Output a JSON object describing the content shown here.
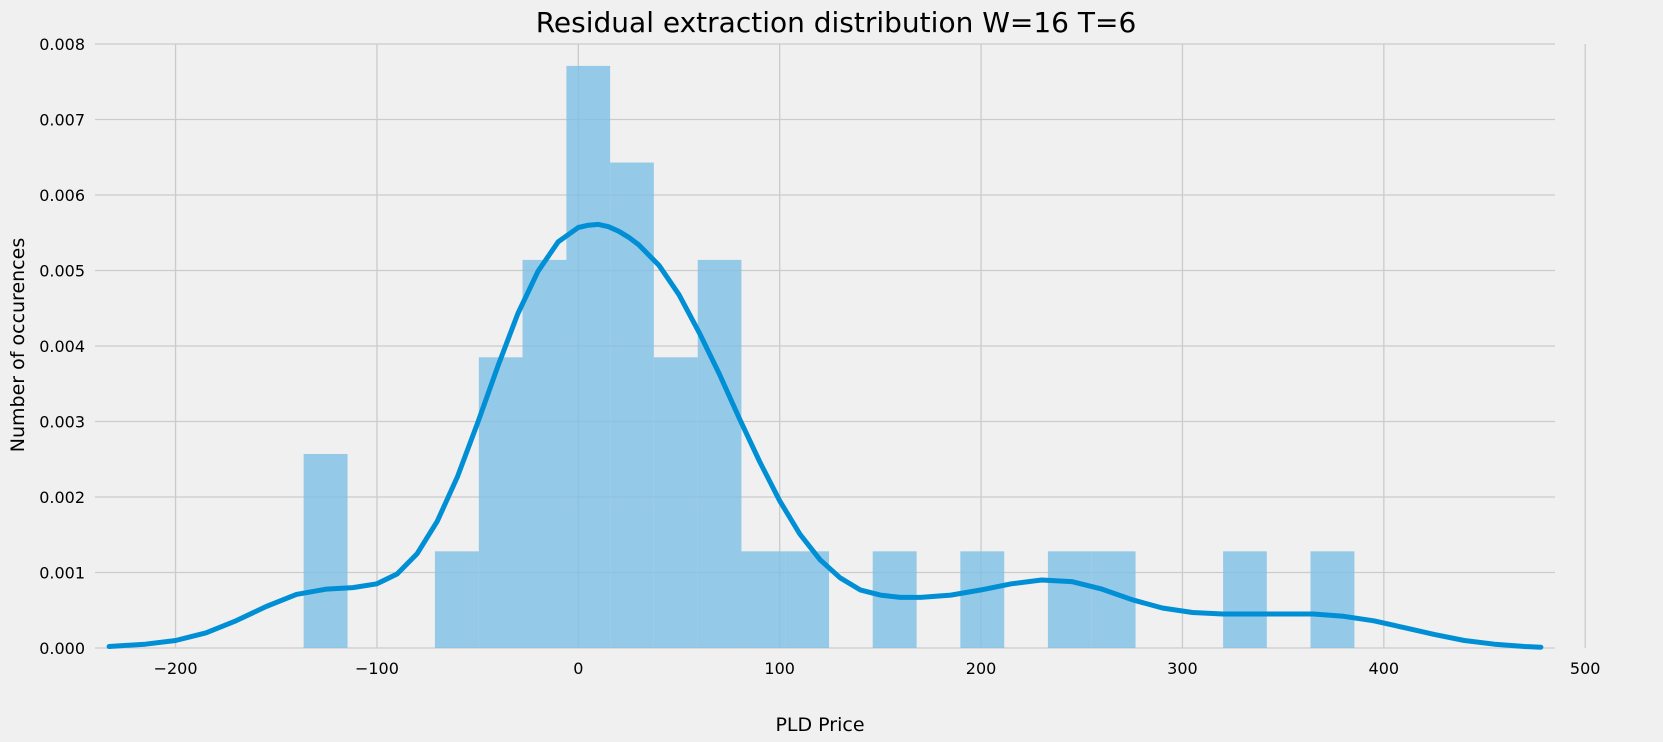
{
  "chart_data": {
    "type": "bar",
    "title": "Residual extraction distribution W=16 T=6",
    "xlabel": "PLD Price",
    "ylabel": "Number of occurences",
    "xlim": [
      -240,
      485
    ],
    "ylim": [
      0,
      0.008
    ],
    "x_ticks": [
      -200,
      -100,
      0,
      100,
      200,
      300,
      400,
      500
    ],
    "x_tick_labels": [
      "−200",
      "−100",
      "0",
      "100",
      "200",
      "300",
      "400",
      "500"
    ],
    "y_ticks": [
      0,
      0.001,
      0.002,
      0.003,
      0.004,
      0.005,
      0.006,
      0.007,
      0.008
    ],
    "y_tick_labels": [
      "0.000",
      "0.001",
      "0.002",
      "0.003",
      "0.004",
      "0.005",
      "0.006",
      "0.007",
      "0.008"
    ],
    "grid": true,
    "colors": {
      "bar": "#7fc0e4",
      "line": "#008fd5",
      "grid": "#cbcbcb",
      "background": "#f0f0f0"
    },
    "histogram": {
      "bin_edges": [
        -136.4,
        -114.6,
        -92.9,
        -71.2,
        -49.4,
        -27.7,
        -5.9,
        15.8,
        37.5,
        59.3,
        81.0,
        102.8,
        124.5,
        146.2,
        168.0,
        189.7,
        211.5,
        233.2,
        255.0,
        276.7,
        298.4,
        320.2,
        341.9,
        363.6,
        385.4
      ],
      "density": [
        0.00257,
        0,
        0,
        0.00128,
        0.00385,
        0.00514,
        0.00771,
        0.00643,
        0.00385,
        0.00514,
        0.00128,
        0.00128,
        0,
        0.00128,
        0,
        0.00128,
        0,
        0.00128,
        0.00128,
        0,
        0,
        0.00128,
        0,
        0.00128
      ]
    },
    "kde": {
      "x": [
        -233,
        -215,
        -200,
        -185,
        -170,
        -155,
        -140,
        -125,
        -112,
        -100,
        -90,
        -80,
        -70,
        -60,
        -50,
        -40,
        -30,
        -20,
        -10,
        0,
        5,
        10,
        15,
        20,
        25,
        30,
        40,
        50,
        60,
        70,
        80,
        90,
        100,
        110,
        120,
        130,
        140,
        150,
        160,
        170,
        185,
        200,
        215,
        230,
        245,
        260,
        275,
        290,
        305,
        320,
        335,
        350,
        365,
        380,
        395,
        410,
        425,
        440,
        455,
        470,
        478
      ],
      "y": [
        2e-05,
        5e-05,
        0.0001,
        0.0002,
        0.00036,
        0.00055,
        0.00071,
        0.00078,
        0.0008,
        0.00085,
        0.00098,
        0.00125,
        0.00168,
        0.00227,
        0.00298,
        0.00373,
        0.00443,
        0.00499,
        0.00538,
        0.00557,
        0.0056,
        0.00561,
        0.00558,
        0.00552,
        0.00544,
        0.00534,
        0.00507,
        0.00468,
        0.00418,
        0.00363,
        0.00304,
        0.00247,
        0.00195,
        0.00151,
        0.00117,
        0.00093,
        0.00077,
        0.0007,
        0.00067,
        0.00067,
        0.0007,
        0.00077,
        0.00085,
        0.0009,
        0.00088,
        0.00078,
        0.00064,
        0.00053,
        0.00047,
        0.00045,
        0.00045,
        0.00045,
        0.00045,
        0.00042,
        0.00036,
        0.00027,
        0.00018,
        0.0001,
        5e-05,
        2e-05,
        1e-05
      ]
    }
  }
}
